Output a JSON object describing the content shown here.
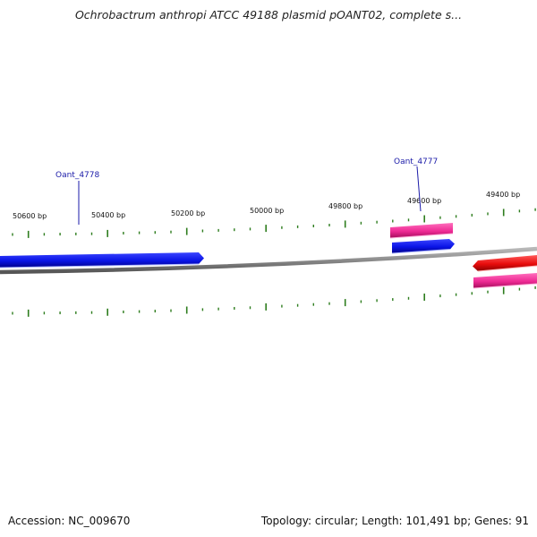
{
  "title": "Ochrobactrum anthropi ATCC 49188 plasmid pOANT02, complete s...",
  "footer": {
    "accession": "Accession: NC_009670",
    "summary": "Topology: circular; Length: 101,491 bp; Genes: 91"
  },
  "colors": {
    "backbone": "#8a8a8a",
    "tick": "#2e7d1e",
    "gene_forward": "#0a14e6",
    "gene_misc": "#f0329a",
    "gene_reverse": "#e80c0c",
    "gene_label": "#1a1aa8",
    "tick_label": "#111111"
  },
  "scale": {
    "labels": [
      {
        "bp": 50600,
        "text": "50600 bp"
      },
      {
        "bp": 50400,
        "text": "50400 bp"
      },
      {
        "bp": 50200,
        "text": "50200 bp"
      },
      {
        "bp": 50000,
        "text": "50000 bp"
      },
      {
        "bp": 49800,
        "text": "49800 bp"
      },
      {
        "bp": 49600,
        "text": "49600 bp"
      },
      {
        "bp": 49400,
        "text": "49400 bp"
      }
    ]
  },
  "genes": [
    {
      "name": "Oant_4778",
      "label": "Oant_4778"
    },
    {
      "name": "Oant_4777",
      "label": "Oant_4777"
    }
  ]
}
